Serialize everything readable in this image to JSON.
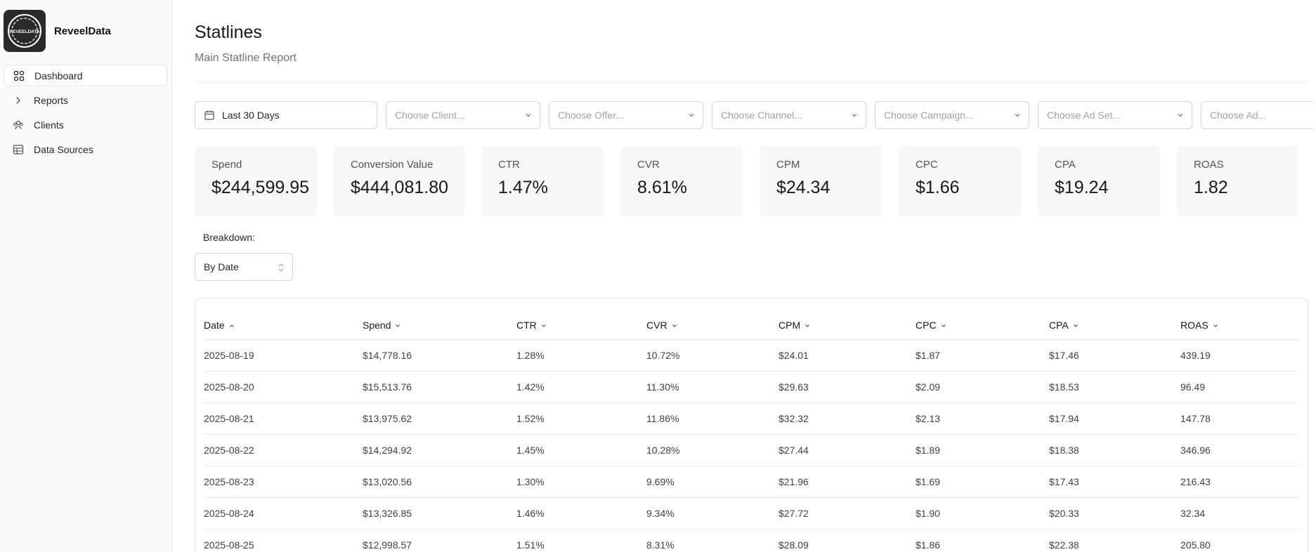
{
  "brand": {
    "name": "ReveelData",
    "logo_text": "REVEELDATA"
  },
  "sidebar": {
    "items": [
      {
        "label": "Dashboard",
        "icon": "grid-icon"
      },
      {
        "label": "Reports",
        "icon": "chevron-right-icon"
      },
      {
        "label": "Clients",
        "icon": "users-icon"
      },
      {
        "label": "Data Sources",
        "icon": "database-icon"
      }
    ]
  },
  "page": {
    "title": "Statlines",
    "subtitle": "Main Statline Report"
  },
  "filters": {
    "date": "Last 30 Days",
    "client": "Choose Client...",
    "offer": "Choose Offer...",
    "channel": "Choose Channel...",
    "campaign": "Choose Campaign...",
    "adset": "Choose Ad Set...",
    "ad": "Choose Ad..."
  },
  "stats": [
    {
      "label": "Spend",
      "value": "$244,599.95"
    },
    {
      "label": "Conversion Value",
      "value": "$444,081.80"
    },
    {
      "label": "CTR",
      "value": "1.47%"
    },
    {
      "label": "CVR",
      "value": "8.61%"
    },
    {
      "label": "CPM",
      "value": "$24.34"
    },
    {
      "label": "CPC",
      "value": "$1.66"
    },
    {
      "label": "CPA",
      "value": "$19.24"
    },
    {
      "label": "ROAS",
      "value": "1.82"
    }
  ],
  "breakdown": {
    "label": "Breakdown:",
    "value": "By Date"
  },
  "table": {
    "headers": [
      "Date",
      "Spend",
      "CTR",
      "CVR",
      "CPM",
      "CPC",
      "CPA",
      "ROAS"
    ],
    "rows": [
      [
        "2025-08-19",
        "$14,778.16",
        "1.28%",
        "10.72%",
        "$24.01",
        "$1.87",
        "$17.46",
        "439.19"
      ],
      [
        "2025-08-20",
        "$15,513.76",
        "1.42%",
        "11.30%",
        "$29.63",
        "$2.09",
        "$18.53",
        "96.49"
      ],
      [
        "2025-08-21",
        "$13,975.62",
        "1.52%",
        "11.86%",
        "$32.32",
        "$2.13",
        "$17.94",
        "147.78"
      ],
      [
        "2025-08-22",
        "$14,294.92",
        "1.45%",
        "10.28%",
        "$27.44",
        "$1.89",
        "$18.38",
        "346.96"
      ],
      [
        "2025-08-23",
        "$13,020.56",
        "1.30%",
        "9.69%",
        "$21.96",
        "$1.69",
        "$17.43",
        "216.43"
      ],
      [
        "2025-08-24",
        "$13,326.85",
        "1.46%",
        "9.34%",
        "$27.72",
        "$1.90",
        "$20.33",
        "32.34"
      ],
      [
        "2025-08-25",
        "$12,998.57",
        "1.51%",
        "8.31%",
        "$28.09",
        "$1.86",
        "$22.38",
        "205.80"
      ]
    ]
  }
}
